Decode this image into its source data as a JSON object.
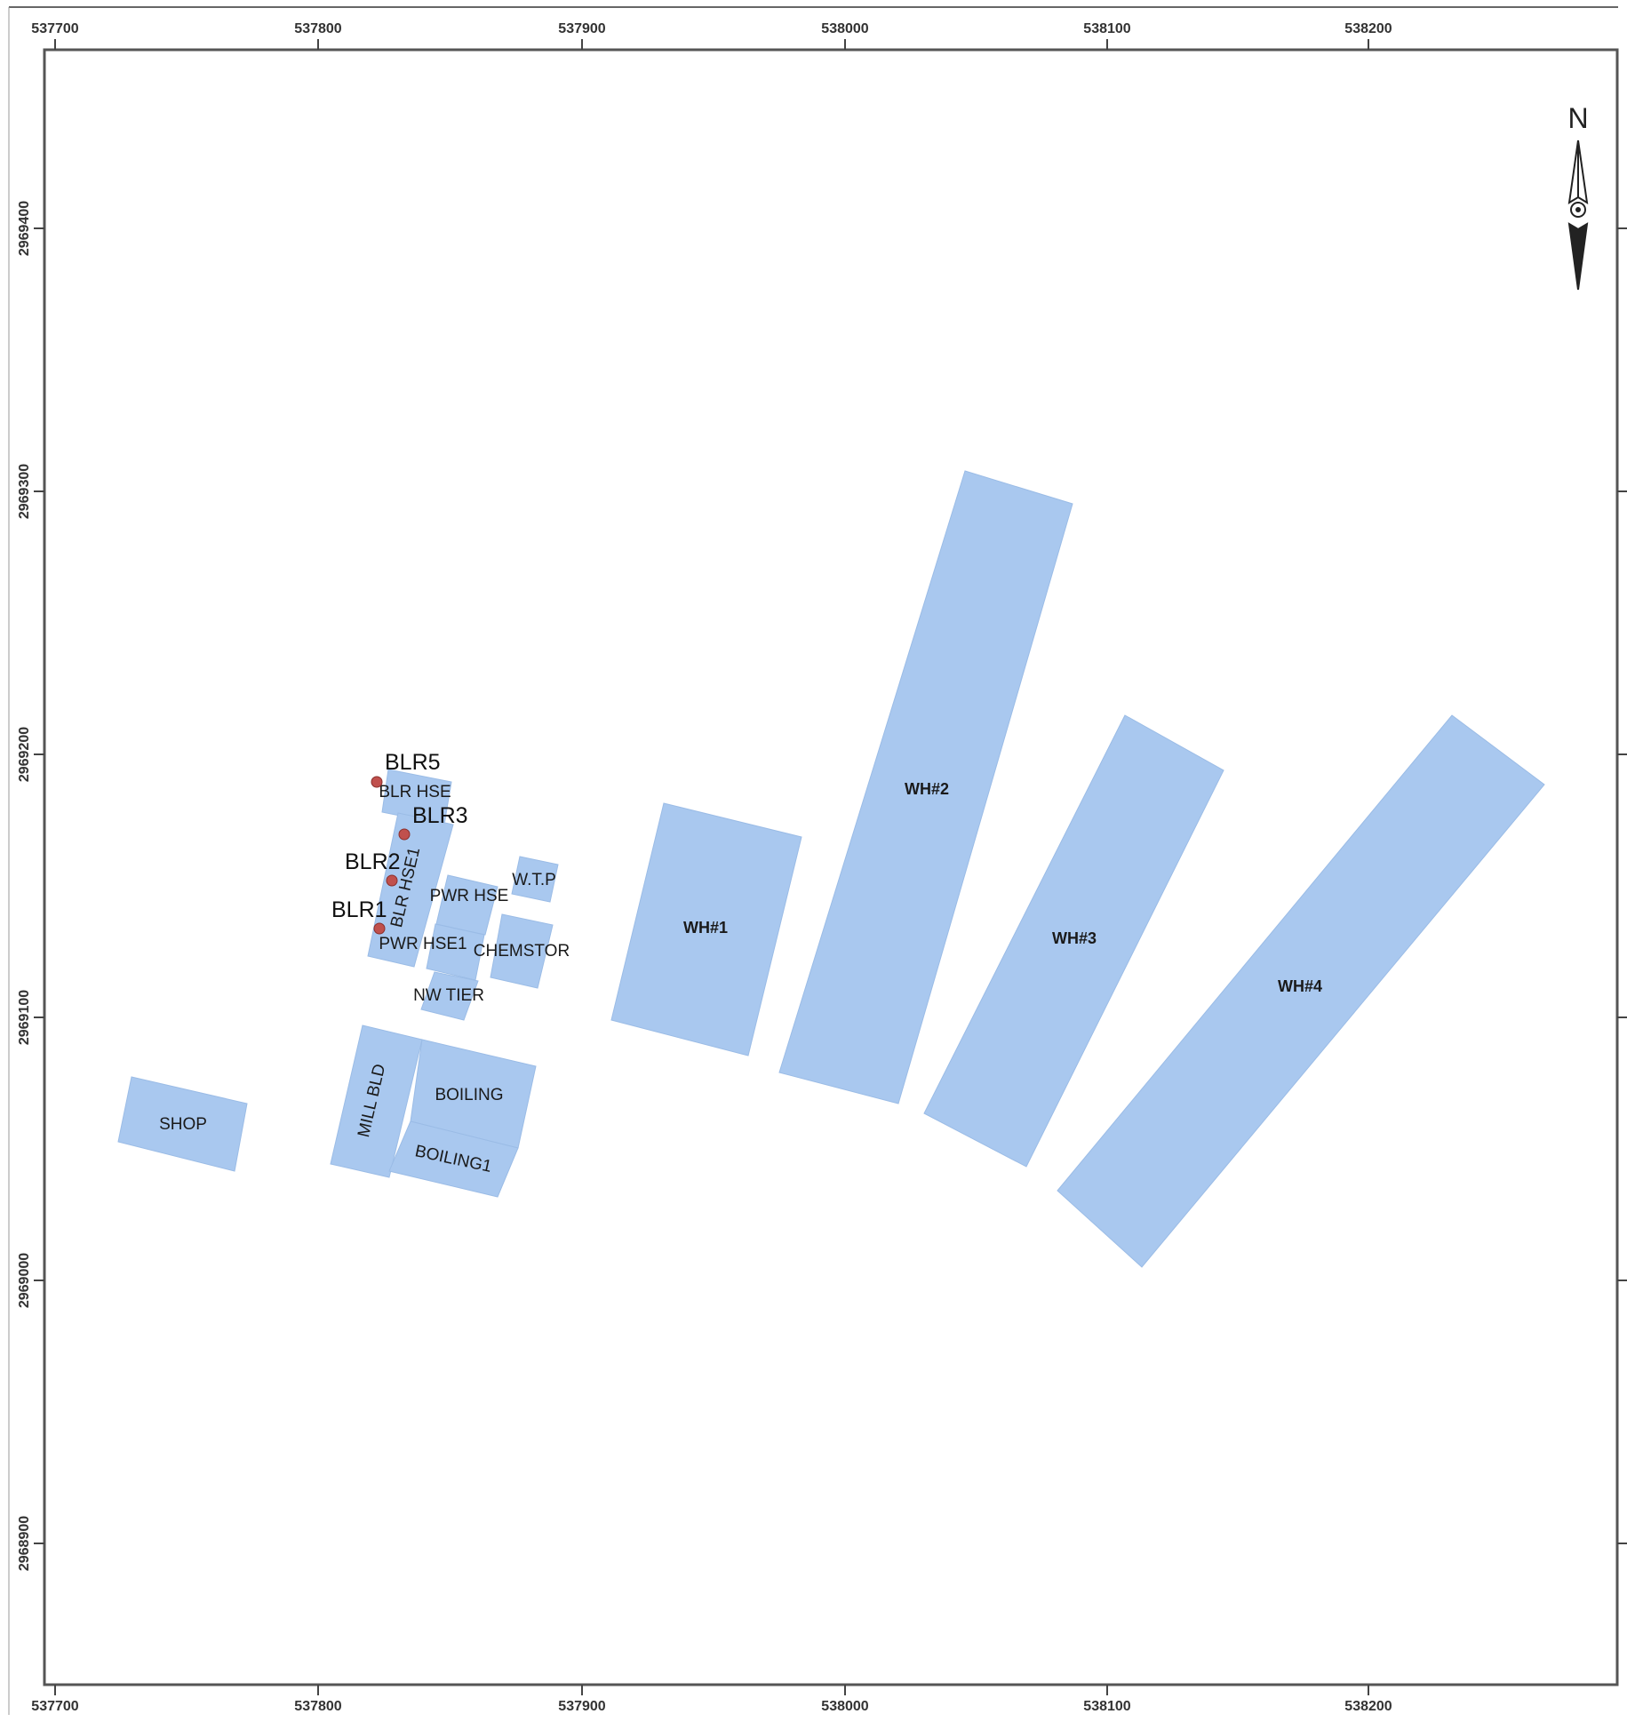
{
  "map": {
    "colors": {
      "building_fill": "#a9c8ef",
      "point_fill": "#c0504d",
      "frame": "#555555"
    },
    "x_ticks": [
      "537700",
      "537800",
      "537900",
      "538000",
      "538100",
      "538200"
    ],
    "x_ticks_bottom": [
      "537700",
      "537800",
      "537900",
      "538000",
      "538100",
      "538200"
    ],
    "y_ticks": [
      "2969400",
      "2969300",
      "2969200",
      "2969100",
      "2969000",
      "2968900"
    ],
    "buildings": [
      {
        "id": "shop",
        "label": "SHOP"
      },
      {
        "id": "mill-bld",
        "label": "MILL BLD"
      },
      {
        "id": "boiling",
        "label": "BOILING"
      },
      {
        "id": "boiling1",
        "label": "BOILING1"
      },
      {
        "id": "blr-hse",
        "label": "BLR HSE"
      },
      {
        "id": "blr-hse1",
        "label": "BLR HSE1"
      },
      {
        "id": "pwr-hse",
        "label": "PWR HSE"
      },
      {
        "id": "pwr-hse1",
        "label": "PWR HSE1"
      },
      {
        "id": "w-t-p",
        "label": "W.T.P"
      },
      {
        "id": "chemstor",
        "label": "CHEMSTOR"
      },
      {
        "id": "nw-tier",
        "label": "NW TIER"
      },
      {
        "id": "wh1",
        "label": "WH#1"
      },
      {
        "id": "wh2",
        "label": "WH#2"
      },
      {
        "id": "wh3",
        "label": "WH#3"
      },
      {
        "id": "wh4",
        "label": "WH#4"
      }
    ],
    "points": [
      {
        "id": "blr5",
        "label": "BLR5"
      },
      {
        "id": "blr3",
        "label": "BLR3"
      },
      {
        "id": "blr2",
        "label": "BLR2"
      },
      {
        "id": "blr1",
        "label": "BLR1"
      }
    ],
    "north_arrow": {
      "label": "N",
      "icon": "north-arrow-icon"
    }
  }
}
